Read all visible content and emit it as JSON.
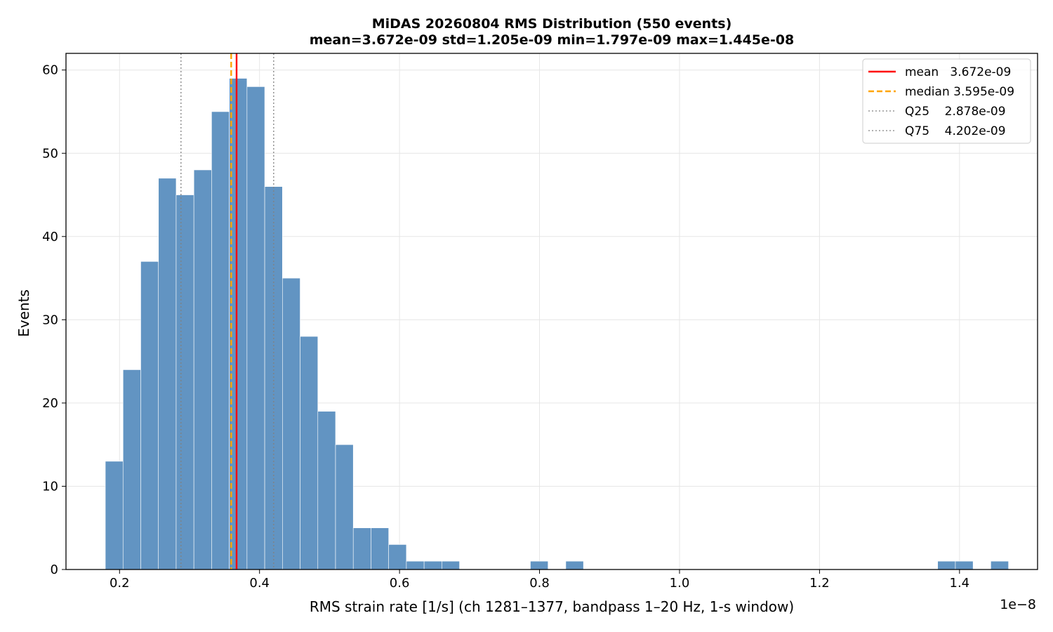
{
  "chart_data": {
    "type": "bar",
    "title": "MiDAS 20260804  RMS Distribution  (550 events)",
    "subtitle": "mean=3.672e-09  std=1.205e-09  min=1.797e-09  max=1.445e-08",
    "xlabel": "RMS strain rate [1/s]  (ch 1281–1377, bandpass 1–20 Hz, 1-s window)",
    "ylabel": "Events",
    "x_offset_label": "1e−8",
    "xlim": [
      0.1235,
      1.5115
    ],
    "ylim": [
      0,
      62
    ],
    "xticks": [
      0.2,
      0.4,
      0.6,
      0.8,
      1.0,
      1.2,
      1.4
    ],
    "xtick_labels": [
      "0.2",
      "0.4",
      "0.6",
      "0.8",
      "1.0",
      "1.2",
      "1.4"
    ],
    "yticks": [
      0,
      10,
      20,
      30,
      40,
      50,
      60
    ],
    "ytick_labels": [
      "0",
      "10",
      "20",
      "30",
      "40",
      "50",
      "60"
    ],
    "grid": true,
    "bin_start": 0.1797,
    "bin_width": 0.0253,
    "counts": [
      13,
      24,
      37,
      47,
      45,
      48,
      55,
      59,
      58,
      46,
      35,
      28,
      19,
      15,
      5,
      5,
      3,
      1,
      1,
      1,
      0,
      0,
      0,
      0,
      1,
      0,
      1,
      0,
      0,
      0,
      0,
      0,
      0,
      0,
      0,
      0,
      0,
      0,
      0,
      0,
      0,
      0,
      0,
      0,
      0,
      0,
      0,
      1,
      1,
      0,
      1
    ],
    "bar_color": "#6294c2",
    "reference_lines": [
      {
        "name": "mean",
        "value": 0.3672,
        "color": "#ff0000",
        "style": "solid"
      },
      {
        "name": "median",
        "value": 0.3595,
        "color": "#ffa500",
        "style": "dashed"
      },
      {
        "name": "Q25",
        "value": 0.2878,
        "color": "#808080",
        "style": "dotted"
      },
      {
        "name": "Q75",
        "value": 0.4202,
        "color": "#808080",
        "style": "dotted"
      }
    ],
    "legend": {
      "placement": "top-right",
      "entries": [
        {
          "label": "mean   3.672e-09",
          "color": "#ff0000",
          "style": "solid"
        },
        {
          "label": "median 3.595e-09",
          "color": "#ffa500",
          "style": "dashed"
        },
        {
          "label": "Q25    2.878e-09",
          "color": "#808080",
          "style": "dotted"
        },
        {
          "label": "Q75    4.202e-09",
          "color": "#808080",
          "style": "dotted"
        }
      ]
    }
  }
}
